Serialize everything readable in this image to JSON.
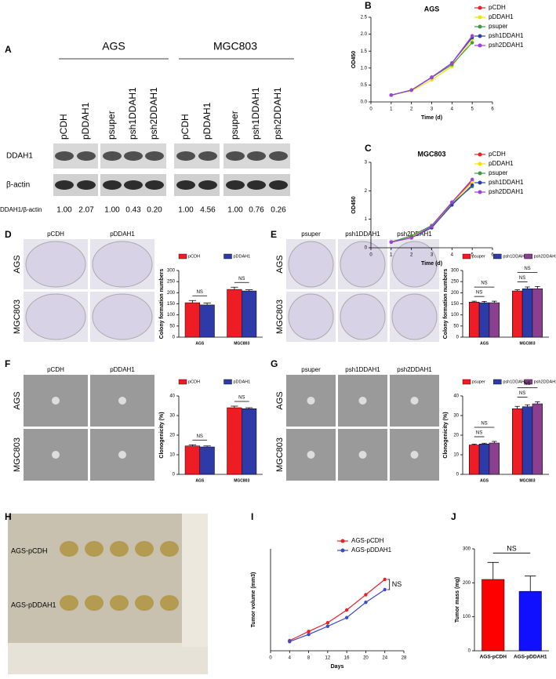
{
  "panel_labels": [
    "A",
    "B",
    "C",
    "D",
    "E",
    "F",
    "G",
    "H",
    "I",
    "J"
  ],
  "blot": {
    "groups": [
      "AGS",
      "MGC803"
    ],
    "lanes": [
      "pCDH",
      "pDDAH1",
      "psuper",
      "psh1DDAH1",
      "psh2DDAH1",
      "pCDH",
      "pDDAH1",
      "psuper",
      "psh1DDAH1",
      "psh2DDAH1"
    ],
    "rows": [
      "DDAH1",
      "β-actin"
    ],
    "ratio_label": "DDAH1/β-actin",
    "ratios": [
      "1.00",
      "2.07",
      "1.00",
      "0.43",
      "0.20",
      "1.00",
      "4.56",
      "1.00",
      "0.76",
      "0.26"
    ]
  },
  "images": {
    "D": {
      "columns": [
        "pCDH",
        "pDDAH1"
      ],
      "rows": [
        "AGS",
        "MGC803"
      ]
    },
    "E": {
      "columns": [
        "psuper",
        "psh1DDAH1",
        "psh2DDAH1"
      ],
      "rows": [
        "AGS",
        "MGC803"
      ]
    },
    "F": {
      "columns": [
        "pCDH",
        "pDDAH1"
      ],
      "rows": [
        "AGS",
        "MGC803"
      ]
    },
    "G": {
      "columns": [
        "psuper",
        "psh1DDAH1",
        "psh2DDAH1"
      ],
      "rows": [
        "AGS",
        "MGC803"
      ]
    },
    "H": {
      "rows": [
        "AGS-pCDH",
        "AGS-pDDAH1"
      ]
    }
  },
  "chart_data": [
    {
      "type": "line",
      "title": "AGS",
      "x_label": "Time (d)",
      "y_label": "OD450",
      "x": [
        1,
        2,
        3,
        4,
        5
      ],
      "xlim": [
        0,
        6
      ],
      "xticks": [
        0,
        1,
        2,
        3,
        4,
        5,
        6
      ],
      "ylim": [
        0,
        2.5
      ],
      "yticks": [
        {
          "value": 0,
          "label": "0.0"
        },
        0.5,
        {
          "value": 1,
          "label": "1.0"
        },
        1.5,
        {
          "value": 2,
          "label": "2.0"
        },
        2.5
      ],
      "legend": "right",
      "series": [
        {
          "name": "pCDH",
          "color": "#e8202a",
          "values": [
            0.2,
            0.35,
            0.72,
            1.15,
            1.95
          ]
        },
        {
          "name": "pDDAH1",
          "color": "#f2e200",
          "values": [
            0.2,
            0.33,
            0.65,
            1.05,
            1.85
          ]
        },
        {
          "name": "psuper",
          "color": "#3a9a4a",
          "values": [
            0.2,
            0.35,
            0.72,
            1.1,
            1.75
          ]
        },
        {
          "name": "psh1DDAH1",
          "color": "#2a3fb0",
          "values": [
            0.2,
            0.35,
            0.73,
            1.15,
            1.9
          ]
        },
        {
          "name": "psh2DDAH1",
          "color": "#a040e0",
          "values": [
            0.2,
            0.35,
            0.72,
            1.15,
            1.95
          ]
        }
      ]
    },
    {
      "type": "line",
      "title": "MGC803",
      "x_label": "Time (d)",
      "y_label": "OD450",
      "x": [
        1,
        2,
        3,
        4,
        5
      ],
      "xlim": [
        0,
        6
      ],
      "xticks": [
        0,
        1,
        2,
        3,
        4,
        5,
        6
      ],
      "ylim": [
        0,
        3
      ],
      "yticks": [
        0,
        1,
        2,
        3
      ],
      "legend": "right",
      "series": [
        {
          "name": "pCDH",
          "color": "#e8202a",
          "values": [
            0.2,
            0.4,
            0.78,
            1.6,
            2.35
          ]
        },
        {
          "name": "pDDAH1",
          "color": "#f2e200",
          "values": [
            0.2,
            0.38,
            0.75,
            1.55,
            2.3
          ]
        },
        {
          "name": "psuper",
          "color": "#3a9a4a",
          "values": [
            0.2,
            0.42,
            0.78,
            1.55,
            2.15
          ]
        },
        {
          "name": "psh1DDAH1",
          "color": "#2a3fb0",
          "values": [
            0.2,
            0.35,
            0.7,
            1.5,
            2.2
          ]
        },
        {
          "name": "psh2DDAH1",
          "color": "#a040e0",
          "values": [
            0.2,
            0.35,
            0.75,
            1.6,
            2.4
          ]
        }
      ]
    },
    {
      "type": "bar",
      "y_label": "Colony formation numbers",
      "categories": [
        "AGS",
        "MGC803"
      ],
      "ylim": [
        0,
        300
      ],
      "yticks": [
        0,
        50,
        100,
        150,
        200,
        250,
        300
      ],
      "legend": "top",
      "annotations": [
        "NS",
        "NS"
      ],
      "series": [
        {
          "name": "pCDH",
          "color": "#ee1c25",
          "values": [
            155,
            215
          ],
          "errors": [
            10,
            10
          ]
        },
        {
          "name": "pDDAH1",
          "color": "#2e3aa8",
          "values": [
            145,
            208
          ],
          "errors": [
            8,
            5
          ]
        }
      ]
    },
    {
      "type": "bar",
      "y_label": "Colony formation numbers",
      "categories": [
        "AGS",
        "MGC803"
      ],
      "ylim": [
        0,
        300
      ],
      "yticks": [
        0,
        50,
        100,
        150,
        200,
        250,
        300
      ],
      "legend": "top",
      "annotations": [
        "NS",
        "NS",
        "NS",
        "NS"
      ],
      "series": [
        {
          "name": "psuper",
          "color": "#ee1c25",
          "values": [
            158,
            208
          ],
          "errors": [
            4,
            5
          ]
        },
        {
          "name": "psh1DDAH1",
          "color": "#2e3aa8",
          "values": [
            155,
            218
          ],
          "errors": [
            6,
            8
          ]
        },
        {
          "name": "psh2DDAH1",
          "color": "#8a3f8f",
          "values": [
            155,
            218
          ],
          "errors": [
            7,
            10
          ]
        }
      ]
    },
    {
      "type": "bar",
      "y_label": "Clonogenicity (%)",
      "categories": [
        "AGS",
        "MGC803"
      ],
      "ylim": [
        0,
        40
      ],
      "yticks": [
        0,
        10,
        20,
        30,
        40
      ],
      "legend": "top",
      "annotations": [
        "NS",
        "NS"
      ],
      "series": [
        {
          "name": "pCDH",
          "color": "#ee1c25",
          "values": [
            14.5,
            34
          ],
          "errors": [
            0.6,
            0.8
          ]
        },
        {
          "name": "pDDAH1",
          "color": "#2e3aa8",
          "values": [
            14,
            33.5
          ],
          "errors": [
            0.5,
            0.5
          ]
        }
      ]
    },
    {
      "type": "bar",
      "y_label": "Clonogenicity (%)",
      "categories": [
        "AGS",
        "MGC803"
      ],
      "ylim": [
        0,
        40
      ],
      "yticks": [
        0,
        10,
        20,
        30,
        40
      ],
      "legend": "top",
      "annotations": [
        "NS",
        "NS",
        "NS",
        "NS"
      ],
      "series": [
        {
          "name": "psuper",
          "color": "#ee1c25",
          "values": [
            15,
            33.5
          ],
          "errors": [
            0.4,
            1.2
          ]
        },
        {
          "name": "psh1DDAH1",
          "color": "#2e3aa8",
          "values": [
            15.5,
            34.5
          ],
          "errors": [
            0.4,
            1
          ]
        },
        {
          "name": "psh2DDAH1",
          "color": "#8a3f8f",
          "values": [
            16,
            36
          ],
          "errors": [
            0.8,
            1
          ]
        }
      ]
    },
    {
      "type": "line",
      "x_label": "Days",
      "y_label": "Tumor volume (mm3)",
      "x": [
        4,
        8,
        12,
        16,
        20,
        24
      ],
      "xlim": [
        0,
        28
      ],
      "xticks": [
        0,
        4,
        8,
        12,
        16,
        20,
        24,
        28
      ],
      "ylim": [
        0,
        200
      ],
      "yticks": [],
      "legend": "upper right",
      "annotations": [
        "NS"
      ],
      "series": [
        {
          "name": "AGS-pCDH",
          "color": "#e8202a",
          "values": [
            20,
            38,
            55,
            80,
            110,
            140
          ]
        },
        {
          "name": "AGS-pDDAH1",
          "color": "#3a4ac8",
          "values": [
            18,
            32,
            48,
            65,
            95,
            120
          ]
        }
      ]
    },
    {
      "type": "bar",
      "y_label": "Tumor mass (mg)",
      "categories": [
        "AGS-pCDH",
        "AGS-pDDAH1"
      ],
      "ylim": [
        0,
        300
      ],
      "yticks": [
        0,
        100,
        200,
        300
      ],
      "annotations": [
        "NS"
      ],
      "values": [
        210,
        175
      ],
      "errors": [
        50,
        45
      ],
      "colors": [
        "#ff0000",
        "#1010ff"
      ]
    }
  ]
}
